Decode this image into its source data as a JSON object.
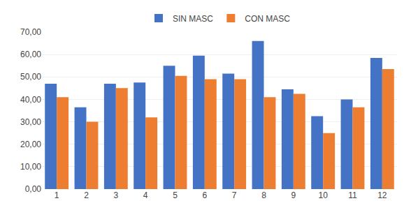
{
  "chart_data": {
    "type": "bar",
    "categories": [
      "1",
      "2",
      "3",
      "4",
      "5",
      "6",
      "7",
      "8",
      "9",
      "10",
      "11",
      "12"
    ],
    "series": [
      {
        "name": "SIN MASC",
        "color": "#4472C4",
        "values": [
          47.0,
          36.5,
          47.0,
          47.5,
          55.0,
          59.5,
          51.5,
          66.0,
          44.5,
          32.5,
          40.0,
          58.5
        ]
      },
      {
        "name": "CON MASC",
        "color": "#ED7D31",
        "values": [
          41.0,
          30.0,
          45.0,
          32.0,
          50.5,
          49.0,
          49.0,
          41.0,
          42.5,
          25.0,
          36.5,
          53.5
        ]
      }
    ],
    "ylim": [
      0,
      70
    ],
    "yticks": [
      {
        "value": 0,
        "label": "0,00"
      },
      {
        "value": 10,
        "label": "10,00"
      },
      {
        "value": 20,
        "label": "20,00"
      },
      {
        "value": 30,
        "label": "30,00"
      },
      {
        "value": 40,
        "label": "40,00"
      },
      {
        "value": 50,
        "label": "50,00"
      },
      {
        "value": 60,
        "label": "60,00"
      },
      {
        "value": 70,
        "label": "70,00"
      }
    ],
    "grid": true,
    "legend": "top"
  }
}
